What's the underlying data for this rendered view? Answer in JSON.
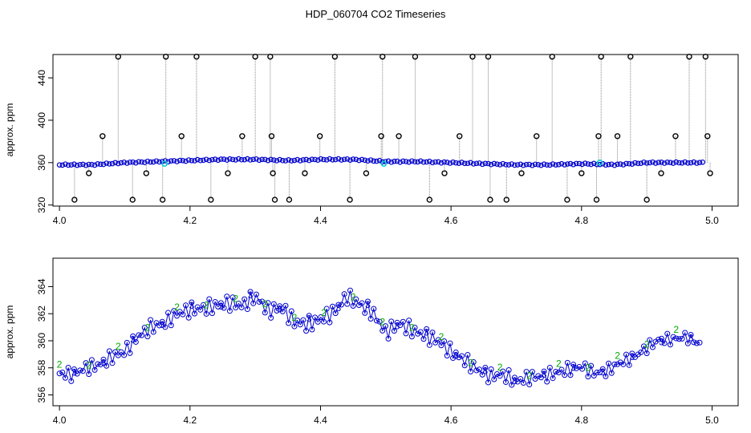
{
  "title": "HDP_060704  CO2 Timeseries",
  "colors": {
    "points": "#0000cc",
    "highlight": "#00d0d0",
    "spike_line": "#888888",
    "outlier": "#000000",
    "series2": "#00aa00",
    "series3": "#0000cc"
  },
  "chart_data": [
    {
      "type": "scatter",
      "title": "HDP_060704  CO2 Timeseries",
      "xlabel": "",
      "ylabel": "approx. ppm",
      "xlim": [
        3.99,
        5.04
      ],
      "ylim": [
        319,
        462
      ],
      "xticks": [
        "4.0",
        "4.2",
        "4.4",
        "4.6",
        "4.8",
        "5.0"
      ],
      "xtick_values": [
        4.0,
        4.2,
        4.4,
        4.6,
        4.8,
        5.0
      ],
      "yticks": [
        "320",
        "360",
        "400",
        "440"
      ],
      "ytick_values": [
        320,
        360,
        400,
        440
      ],
      "grid": false,
      "baseline_x": [
        4.0,
        4.05,
        4.1,
        4.15,
        4.2,
        4.25,
        4.3,
        4.35,
        4.4,
        4.45,
        4.5,
        4.55,
        4.6,
        4.65,
        4.7,
        4.75,
        4.8,
        4.85,
        4.9,
        4.95,
        4.99
      ],
      "baseline_y": [
        358,
        358,
        360,
        361,
        362,
        363,
        363,
        362,
        363,
        363,
        361,
        361,
        360,
        359,
        358,
        358,
        359,
        358,
        360,
        360,
        360
      ],
      "highlight_x": [
        4.161,
        4.497,
        4.828
      ],
      "highlight_y": [
        359,
        359,
        360
      ],
      "outliers_x": [
        4.023,
        4.045,
        4.066,
        4.09,
        4.112,
        4.133,
        4.158,
        4.163,
        4.187,
        4.21,
        4.232,
        4.258,
        4.28,
        4.3,
        4.323,
        4.325,
        4.327,
        4.33,
        4.352,
        4.376,
        4.399,
        4.422,
        4.445,
        4.47,
        4.493,
        4.495,
        4.52,
        4.545,
        4.567,
        4.59,
        4.613,
        4.633,
        4.657,
        4.66,
        4.685,
        4.708,
        4.731,
        4.755,
        4.778,
        4.8,
        4.823,
        4.826,
        4.83,
        4.855,
        4.875,
        4.9,
        4.922,
        4.944,
        4.965,
        4.99,
        4.993,
        4.997
      ],
      "outliers_y": [
        325,
        350,
        385,
        460,
        325,
        350,
        325,
        460,
        385,
        460,
        325,
        350,
        385,
        460,
        460,
        385,
        350,
        325,
        325,
        350,
        385,
        460,
        325,
        350,
        385,
        460,
        385,
        460,
        325,
        350,
        385,
        460,
        460,
        325,
        325,
        350,
        385,
        460,
        325,
        350,
        325,
        385,
        460,
        385,
        460,
        325,
        350,
        385,
        460,
        460,
        385,
        350
      ]
    },
    {
      "type": "line",
      "xlabel": "",
      "ylabel": "approx. ppm",
      "xlim": [
        3.99,
        5.04
      ],
      "ylim": [
        355.2,
        366.1
      ],
      "xticks": [
        "4.0",
        "4.2",
        "4.4",
        "4.6",
        "4.8",
        "5.0"
      ],
      "xtick_values": [
        4.0,
        4.2,
        4.4,
        4.6,
        4.8,
        5.0
      ],
      "yticks": [
        "356",
        "358",
        "360",
        "362",
        "364"
      ],
      "ytick_values": [
        356,
        358,
        360,
        362,
        364
      ],
      "grid": false,
      "x": [
        4.0,
        4.02,
        4.04,
        4.06,
        4.08,
        4.1,
        4.12,
        4.14,
        4.16,
        4.18,
        4.2,
        4.22,
        4.24,
        4.26,
        4.28,
        4.3,
        4.32,
        4.34,
        4.36,
        4.38,
        4.4,
        4.42,
        4.44,
        4.46,
        4.48,
        4.5,
        4.52,
        4.54,
        4.56,
        4.58,
        4.6,
        4.62,
        4.64,
        4.66,
        4.68,
        4.7,
        4.72,
        4.74,
        4.76,
        4.78,
        4.8,
        4.82,
        4.84,
        4.86,
        4.88,
        4.9,
        4.92,
        4.94,
        4.96,
        4.98
      ],
      "y": [
        357.6,
        357.5,
        358.0,
        358.2,
        358.8,
        359.2,
        360.3,
        361.0,
        361.3,
        362.0,
        362.3,
        362.4,
        362.6,
        362.8,
        362.6,
        363.3,
        362.2,
        362.5,
        361.4,
        361.2,
        361.6,
        362.1,
        363.3,
        362.7,
        362.1,
        360.6,
        361.3,
        360.8,
        360.4,
        360.0,
        359.2,
        358.6,
        357.9,
        357.4,
        357.5,
        357.0,
        357.3,
        357.4,
        357.6,
        357.9,
        358.1,
        357.6,
        357.8,
        358.4,
        358.8,
        359.5,
        360.1,
        360.1,
        360.3,
        359.8
      ],
      "series": [
        {
          "marker": "2",
          "color": "#00aa00"
        },
        {
          "marker": "3",
          "color": "#0000cc"
        }
      ]
    }
  ]
}
